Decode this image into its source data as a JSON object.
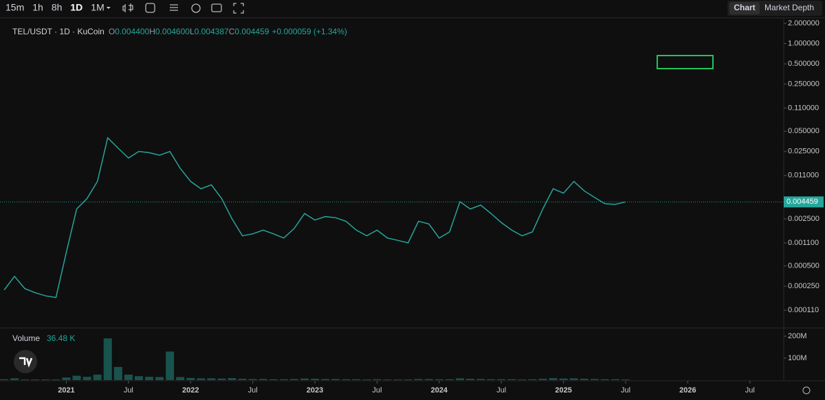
{
  "toolbar": {
    "intervals": [
      "15m",
      "1h",
      "8h",
      "1D",
      "1M"
    ],
    "tabs": [
      "Chart",
      "Market Depth"
    ]
  },
  "legend": {
    "symbol": "TEL/USDT · 1D · KuCoin",
    "ohlc": [
      {
        "key": "O",
        "value": "0.004400"
      },
      {
        "key": "H",
        "value": "0.004600"
      },
      {
        "key": "L",
        "value": "0.004387"
      },
      {
        "key": "C",
        "value": "0.004459"
      }
    ],
    "change": "+0.000059 (+1.34%)"
  },
  "volume_legend": {
    "label": "Volume",
    "value": "36.48 K"
  },
  "chart_data": [
    {
      "type": "line",
      "log_scale": true,
      "color": "#26a69a",
      "x": [
        "2020-07",
        "2020-08",
        "2020-09",
        "2020-10",
        "2020-11",
        "2020-12",
        "2021-01",
        "2021-02",
        "2021-03",
        "2021-04",
        "2021-05",
        "2021-06",
        "2021-07",
        "2021-08",
        "2021-09",
        "2021-10",
        "2021-11",
        "2021-12",
        "2022-01",
        "2022-02",
        "2022-03",
        "2022-04",
        "2022-05",
        "2022-06",
        "2022-07",
        "2022-08",
        "2022-09",
        "2022-10",
        "2022-11",
        "2022-12",
        "2023-01",
        "2023-02",
        "2023-03",
        "2023-04",
        "2023-05",
        "2023-06",
        "2023-07",
        "2023-08",
        "2023-09",
        "2023-10",
        "2023-11",
        "2023-12",
        "2024-01",
        "2024-02",
        "2024-03",
        "2024-04",
        "2024-05",
        "2024-06",
        "2024-07",
        "2024-08",
        "2024-09",
        "2024-10",
        "2024-11",
        "2024-12",
        "2025-01",
        "2025-02",
        "2025-03",
        "2025-04",
        "2025-05",
        "2025-06",
        "2025-07"
      ],
      "values": [
        0.00022,
        0.00035,
        0.00023,
        0.0002,
        0.00018,
        0.00017,
        0.0008,
        0.0035,
        0.005,
        0.009,
        0.04,
        0.028,
        0.02,
        0.025,
        0.024,
        0.022,
        0.025,
        0.014,
        0.009,
        0.007,
        0.008,
        0.005,
        0.0025,
        0.0014,
        0.0015,
        0.0017,
        0.0015,
        0.0013,
        0.0018,
        0.003,
        0.0024,
        0.0027,
        0.0026,
        0.0023,
        0.0017,
        0.0014,
        0.0017,
        0.0013,
        0.0012,
        0.0011,
        0.0023,
        0.0021,
        0.0013,
        0.0016,
        0.0045,
        0.0035,
        0.004,
        0.003,
        0.0022,
        0.0017,
        0.0014,
        0.0016,
        0.0035,
        0.007,
        0.006,
        0.009,
        0.0065,
        0.0052,
        0.0042,
        0.0041,
        0.004459
      ],
      "xlim": [
        "2020-06",
        "2026-10"
      ],
      "xticks": [
        {
          "value": "2021-01",
          "label": "2021"
        },
        {
          "value": "2021-07",
          "label": "Jul"
        },
        {
          "value": "2022-01",
          "label": "2022"
        },
        {
          "value": "2022-07",
          "label": "Jul"
        },
        {
          "value": "2023-01",
          "label": "2023"
        },
        {
          "value": "2023-07",
          "label": "Jul"
        },
        {
          "value": "2024-01",
          "label": "2024"
        },
        {
          "value": "2024-07",
          "label": "Jul"
        },
        {
          "value": "2025-01",
          "label": "2025"
        },
        {
          "value": "2025-07",
          "label": "Jul"
        },
        {
          "value": "2026-01",
          "label": "2026"
        },
        {
          "value": "2026-07",
          "label": "Jul"
        }
      ],
      "ylim": [
        6e-05,
        2.3
      ],
      "yticks": [
        {
          "value": 2,
          "label": "2.000000"
        },
        {
          "value": 1,
          "label": "1.000000"
        },
        {
          "value": 0.5,
          "label": "0.500000"
        },
        {
          "value": 0.25,
          "label": "0.250000"
        },
        {
          "value": 0.11,
          "label": "0.110000"
        },
        {
          "value": 0.05,
          "label": "0.050000"
        },
        {
          "value": 0.025,
          "label": "0.025000"
        },
        {
          "value": 0.011,
          "label": "0.011000"
        },
        {
          "value": 0.0025,
          "label": "0.002500"
        },
        {
          "value": 0.0011,
          "label": "0.001100"
        },
        {
          "value": 0.0005,
          "label": "0.000500"
        },
        {
          "value": 0.00025,
          "label": "0.000250"
        },
        {
          "value": 0.00011,
          "label": "0.000110"
        }
      ]
    },
    {
      "type": "bar",
      "color": "#26a69a",
      "values": [
        4000000,
        8000000,
        3000000,
        3000000,
        3000000,
        3000000,
        12000000,
        20000000,
        15000000,
        25000000,
        190000000,
        60000000,
        25000000,
        18000000,
        15000000,
        14000000,
        130000000,
        14000000,
        10000000,
        8000000,
        8000000,
        7000000,
        9000000,
        6000000,
        5000000,
        5000000,
        4000000,
        4000000,
        5000000,
        7000000,
        6000000,
        5000000,
        5000000,
        4000000,
        4000000,
        3000000,
        4000000,
        3000000,
        3000000,
        3000000,
        5000000,
        5000000,
        4000000,
        4000000,
        8000000,
        6000000,
        5000000,
        4000000,
        4000000,
        4000000,
        3000000,
        4000000,
        6000000,
        9000000,
        7000000,
        8000000,
        6000000,
        5000000,
        4000000,
        4000000,
        3000000
      ],
      "ylim": [
        0,
        237500000
      ],
      "yticks": [
        {
          "value": 100000000,
          "label": "100M"
        },
        {
          "value": 200000000,
          "label": "200M"
        }
      ]
    }
  ]
}
